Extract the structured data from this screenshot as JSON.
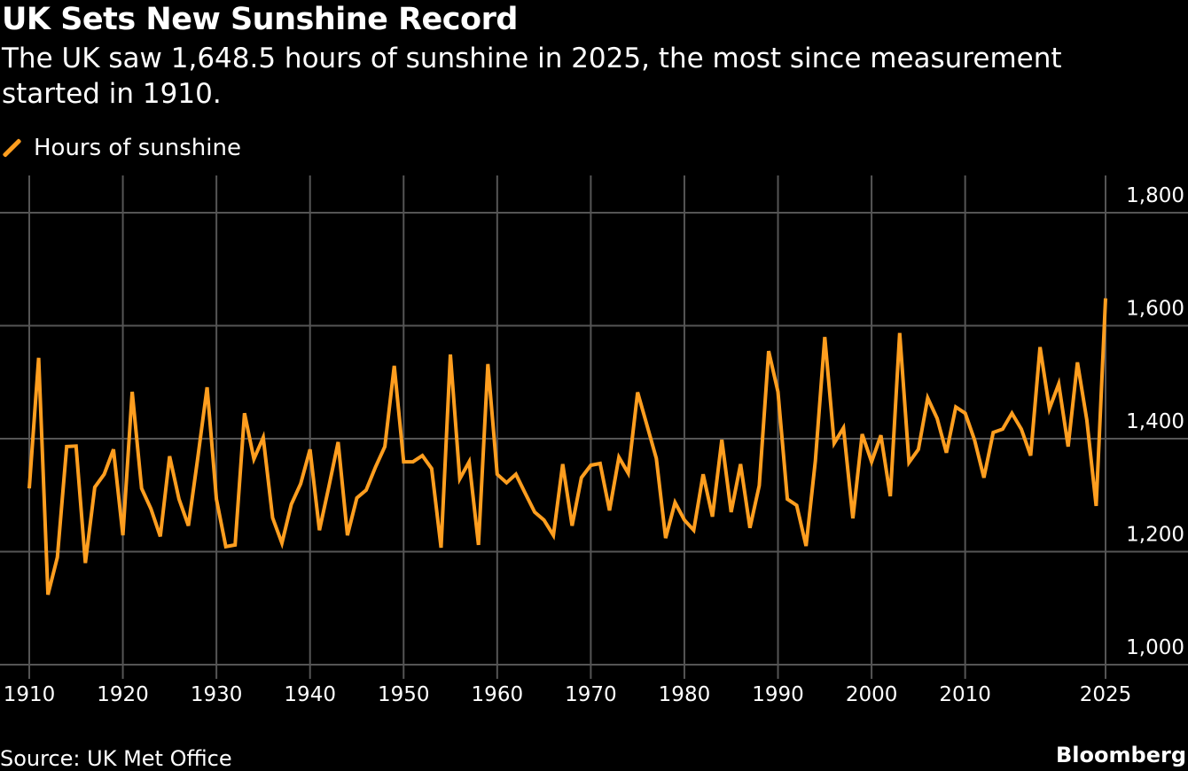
{
  "title": "UK Sets New Sunshine Record",
  "subtitle": "The UK saw 1,648.5 hours of sunshine in 2025, the most since measurement started in 1910.",
  "source": "Source: UK Met Office",
  "brand": "Bloomberg",
  "colors": {
    "series": "#ff9e1f",
    "grid": "#555555",
    "background": "#000000"
  },
  "chart_data": {
    "type": "line",
    "title": "UK Sets New Sunshine Record",
    "xlabel": "",
    "ylabel": "",
    "xlim": [
      1910,
      2025
    ],
    "ylim": [
      1000,
      1800
    ],
    "grid": true,
    "legend": "top-left",
    "x_ticks": [
      "1910",
      "1920",
      "1930",
      "1940",
      "1950",
      "1960",
      "1970",
      "1980",
      "1990",
      "2000",
      "2010",
      "2025"
    ],
    "y_ticks": [
      "1,000",
      "1,200",
      "1,400",
      "1,600",
      "1,800"
    ],
    "series": [
      {
        "name": "Hours of sunshine",
        "x_start": 1910,
        "values": [
          1312,
          1543,
          1124,
          1190,
          1386,
          1387,
          1180,
          1314,
          1337,
          1381,
          1229,
          1483,
          1312,
          1276,
          1227,
          1369,
          1293,
          1246,
          1365,
          1491,
          1293,
          1209,
          1212,
          1445,
          1364,
          1402,
          1260,
          1215,
          1284,
          1320,
          1381,
          1238,
          1314,
          1394,
          1229,
          1295,
          1309,
          1350,
          1386,
          1529,
          1359,
          1359,
          1370,
          1347,
          1207,
          1549,
          1329,
          1359,
          1212,
          1532,
          1337,
          1322,
          1337,
          1303,
          1270,
          1256,
          1229,
          1355,
          1246,
          1331,
          1353,
          1356,
          1273,
          1367,
          1339,
          1482,
          1424,
          1365,
          1224,
          1287,
          1256,
          1238,
          1337,
          1262,
          1398,
          1270,
          1355,
          1242,
          1317,
          1555,
          1483,
          1293,
          1282,
          1210,
          1361,
          1580,
          1392,
          1419,
          1259,
          1408,
          1359,
          1406,
          1298,
          1587,
          1358,
          1381,
          1472,
          1436,
          1375,
          1456,
          1445,
          1398,
          1331,
          1411,
          1417,
          1445,
          1417,
          1370,
          1562,
          1453,
          1497,
          1386,
          1535,
          1433,
          1281,
          1648.5
        ]
      }
    ]
  }
}
